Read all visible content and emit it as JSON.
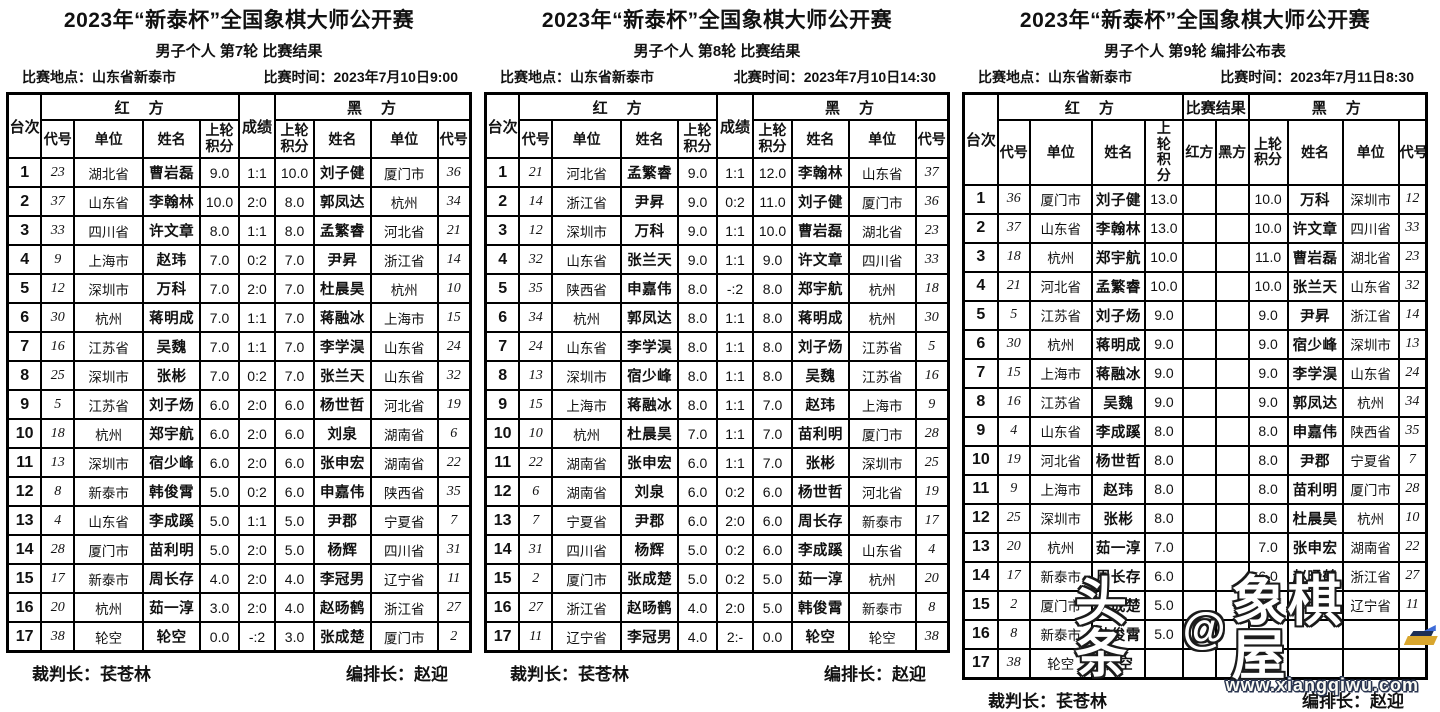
{
  "watermark": {
    "prefix": "头条",
    "at": "@",
    "logo": "象棋屋",
    "url": "www.xiangqiwu.com"
  },
  "tables": [
    {
      "title": "2023年“新泰杯”全国象棋大师公开赛",
      "subtitle": "男子个人 第7轮 比赛结果",
      "venue_label": "比赛地点：",
      "venue": "山东省新泰市",
      "time_label": "比赛时间：",
      "time": "2023年7月10日9:00",
      "footer_left": "裁判长：苌苍林",
      "footer_right": "编排长：赵迎",
      "result_cols": 1,
      "headers": {
        "board": "台次",
        "red": "红　方",
        "black": "黑　方",
        "result": "成绩",
        "code": "代号",
        "unit": "单位",
        "name": "姓名",
        "prev": "上轮积分"
      },
      "rows": [
        {
          "no": "1",
          "r_code": "23",
          "r_unit": "湖北省",
          "r_name": "曹岩磊",
          "r_prev": "9.0",
          "res": "1:1",
          "b_prev": "10.0",
          "b_name": "刘子健",
          "b_unit": "厦门市",
          "b_code": "36"
        },
        {
          "no": "2",
          "r_code": "37",
          "r_unit": "山东省",
          "r_name": "李翰林",
          "r_prev": "10.0",
          "res": "2:0",
          "b_prev": "8.0",
          "b_name": "郭凤达",
          "b_unit": "杭州",
          "b_code": "34"
        },
        {
          "no": "3",
          "r_code": "33",
          "r_unit": "四川省",
          "r_name": "许文章",
          "r_prev": "8.0",
          "res": "1:1",
          "b_prev": "8.0",
          "b_name": "孟繁睿",
          "b_unit": "河北省",
          "b_code": "21"
        },
        {
          "no": "4",
          "r_code": "9",
          "r_unit": "上海市",
          "r_name": "赵玮",
          "r_prev": "7.0",
          "res": "0:2",
          "b_prev": "7.0",
          "b_name": "尹昇",
          "b_unit": "浙江省",
          "b_code": "14"
        },
        {
          "no": "5",
          "r_code": "12",
          "r_unit": "深圳市",
          "r_name": "万科",
          "r_prev": "7.0",
          "res": "2:0",
          "b_prev": "7.0",
          "b_name": "杜晨昊",
          "b_unit": "杭州",
          "b_code": "10"
        },
        {
          "no": "6",
          "r_code": "30",
          "r_unit": "杭州",
          "r_name": "蒋明成",
          "r_prev": "7.0",
          "res": "1:1",
          "b_prev": "7.0",
          "b_name": "蒋融冰",
          "b_unit": "上海市",
          "b_code": "15"
        },
        {
          "no": "7",
          "r_code": "16",
          "r_unit": "江苏省",
          "r_name": "吴魏",
          "r_prev": "7.0",
          "res": "1:1",
          "b_prev": "7.0",
          "b_name": "李学淏",
          "b_unit": "山东省",
          "b_code": "24"
        },
        {
          "no": "8",
          "r_code": "25",
          "r_unit": "深圳市",
          "r_name": "张彬",
          "r_prev": "7.0",
          "res": "0:2",
          "b_prev": "7.0",
          "b_name": "张兰天",
          "b_unit": "山东省",
          "b_code": "32"
        },
        {
          "no": "9",
          "r_code": "5",
          "r_unit": "江苏省",
          "r_name": "刘子炀",
          "r_prev": "6.0",
          "res": "2:0",
          "b_prev": "6.0",
          "b_name": "杨世哲",
          "b_unit": "河北省",
          "b_code": "19"
        },
        {
          "no": "10",
          "r_code": "18",
          "r_unit": "杭州",
          "r_name": "郑宇航",
          "r_prev": "6.0",
          "res": "2:0",
          "b_prev": "6.0",
          "b_name": "刘泉",
          "b_unit": "湖南省",
          "b_code": "6"
        },
        {
          "no": "11",
          "r_code": "13",
          "r_unit": "深圳市",
          "r_name": "宿少峰",
          "r_prev": "6.0",
          "res": "2:0",
          "b_prev": "6.0",
          "b_name": "张申宏",
          "b_unit": "湖南省",
          "b_code": "22"
        },
        {
          "no": "12",
          "r_code": "8",
          "r_unit": "新泰市",
          "r_name": "韩俊霄",
          "r_prev": "5.0",
          "res": "0:2",
          "b_prev": "6.0",
          "b_name": "申嘉伟",
          "b_unit": "陕西省",
          "b_code": "35"
        },
        {
          "no": "13",
          "r_code": "4",
          "r_unit": "山东省",
          "r_name": "李成蹊",
          "r_prev": "5.0",
          "res": "1:1",
          "b_prev": "5.0",
          "b_name": "尹郡",
          "b_unit": "宁夏省",
          "b_code": "7"
        },
        {
          "no": "14",
          "r_code": "28",
          "r_unit": "厦门市",
          "r_name": "苗利明",
          "r_prev": "5.0",
          "res": "2:0",
          "b_prev": "5.0",
          "b_name": "杨辉",
          "b_unit": "四川省",
          "b_code": "31"
        },
        {
          "no": "15",
          "r_code": "17",
          "r_unit": "新泰市",
          "r_name": "周长存",
          "r_prev": "4.0",
          "res": "2:0",
          "b_prev": "4.0",
          "b_name": "李冠男",
          "b_unit": "辽宁省",
          "b_code": "11"
        },
        {
          "no": "16",
          "r_code": "20",
          "r_unit": "杭州",
          "r_name": "茹一淳",
          "r_prev": "3.0",
          "res": "2:0",
          "b_prev": "4.0",
          "b_name": "赵旸鹤",
          "b_unit": "浙江省",
          "b_code": "27"
        },
        {
          "no": "17",
          "r_code": "38",
          "r_unit": "轮空",
          "r_name": "轮空",
          "r_prev": "0.0",
          "res": "-:2",
          "b_prev": "3.0",
          "b_name": "张成楚",
          "b_unit": "厦门市",
          "b_code": "2"
        }
      ]
    },
    {
      "title": "2023年“新泰杯”全国象棋大师公开赛",
      "subtitle": "男子个人 第8轮 比赛结果",
      "venue_label": "比赛地点：",
      "venue": "山东省新泰市",
      "time_label": "北赛时间：",
      "time": "2023年7月10日14:30",
      "footer_left": "裁判长：苌苍林",
      "footer_right": "编排长：赵迎",
      "result_cols": 1,
      "headers": {
        "board": "台次",
        "red": "红　方",
        "black": "黑　方",
        "result": "成绩",
        "code": "代号",
        "unit": "单位",
        "name": "姓名",
        "prev": "上轮积分"
      },
      "rows": [
        {
          "no": "1",
          "r_code": "21",
          "r_unit": "河北省",
          "r_name": "孟繁睿",
          "r_prev": "9.0",
          "res": "1:1",
          "b_prev": "12.0",
          "b_name": "李翰林",
          "b_unit": "山东省",
          "b_code": "37"
        },
        {
          "no": "2",
          "r_code": "14",
          "r_unit": "浙江省",
          "r_name": "尹昇",
          "r_prev": "9.0",
          "res": "0:2",
          "b_prev": "11.0",
          "b_name": "刘子健",
          "b_unit": "厦门市",
          "b_code": "36"
        },
        {
          "no": "3",
          "r_code": "12",
          "r_unit": "深圳市",
          "r_name": "万科",
          "r_prev": "9.0",
          "res": "1:1",
          "b_prev": "10.0",
          "b_name": "曹岩磊",
          "b_unit": "湖北省",
          "b_code": "23"
        },
        {
          "no": "4",
          "r_code": "32",
          "r_unit": "山东省",
          "r_name": "张兰天",
          "r_prev": "9.0",
          "res": "1:1",
          "b_prev": "9.0",
          "b_name": "许文章",
          "b_unit": "四川省",
          "b_code": "33"
        },
        {
          "no": "5",
          "r_code": "35",
          "r_unit": "陕西省",
          "r_name": "申嘉伟",
          "r_prev": "8.0",
          "res": "-:2",
          "b_prev": "8.0",
          "b_name": "郑宇航",
          "b_unit": "杭州",
          "b_code": "18"
        },
        {
          "no": "6",
          "r_code": "34",
          "r_unit": "杭州",
          "r_name": "郭凤达",
          "r_prev": "8.0",
          "res": "1:1",
          "b_prev": "8.0",
          "b_name": "蒋明成",
          "b_unit": "杭州",
          "b_code": "30"
        },
        {
          "no": "7",
          "r_code": "24",
          "r_unit": "山东省",
          "r_name": "李学淏",
          "r_prev": "8.0",
          "res": "1:1",
          "b_prev": "8.0",
          "b_name": "刘子炀",
          "b_unit": "江苏省",
          "b_code": "5"
        },
        {
          "no": "8",
          "r_code": "13",
          "r_unit": "深圳市",
          "r_name": "宿少峰",
          "r_prev": "8.0",
          "res": "1:1",
          "b_prev": "8.0",
          "b_name": "吴魏",
          "b_unit": "江苏省",
          "b_code": "16"
        },
        {
          "no": "9",
          "r_code": "15",
          "r_unit": "上海市",
          "r_name": "蒋融冰",
          "r_prev": "8.0",
          "res": "1:1",
          "b_prev": "7.0",
          "b_name": "赵玮",
          "b_unit": "上海市",
          "b_code": "9"
        },
        {
          "no": "10",
          "r_code": "10",
          "r_unit": "杭州",
          "r_name": "杜晨昊",
          "r_prev": "7.0",
          "res": "1:1",
          "b_prev": "7.0",
          "b_name": "苗利明",
          "b_unit": "厦门市",
          "b_code": "28"
        },
        {
          "no": "11",
          "r_code": "22",
          "r_unit": "湖南省",
          "r_name": "张申宏",
          "r_prev": "6.0",
          "res": "1:1",
          "b_prev": "7.0",
          "b_name": "张彬",
          "b_unit": "深圳市",
          "b_code": "25"
        },
        {
          "no": "12",
          "r_code": "6",
          "r_unit": "湖南省",
          "r_name": "刘泉",
          "r_prev": "6.0",
          "res": "0:2",
          "b_prev": "6.0",
          "b_name": "杨世哲",
          "b_unit": "河北省",
          "b_code": "19"
        },
        {
          "no": "13",
          "r_code": "7",
          "r_unit": "宁夏省",
          "r_name": "尹郡",
          "r_prev": "6.0",
          "res": "2:0",
          "b_prev": "6.0",
          "b_name": "周长存",
          "b_unit": "新泰市",
          "b_code": "17"
        },
        {
          "no": "14",
          "r_code": "31",
          "r_unit": "四川省",
          "r_name": "杨辉",
          "r_prev": "5.0",
          "res": "0:2",
          "b_prev": "6.0",
          "b_name": "李成蹊",
          "b_unit": "山东省",
          "b_code": "4"
        },
        {
          "no": "15",
          "r_code": "2",
          "r_unit": "厦门市",
          "r_name": "张成楚",
          "r_prev": "5.0",
          "res": "0:2",
          "b_prev": "5.0",
          "b_name": "茹一淳",
          "b_unit": "杭州",
          "b_code": "20"
        },
        {
          "no": "16",
          "r_code": "27",
          "r_unit": "浙江省",
          "r_name": "赵旸鹤",
          "r_prev": "4.0",
          "res": "2:0",
          "b_prev": "5.0",
          "b_name": "韩俊霄",
          "b_unit": "新泰市",
          "b_code": "8"
        },
        {
          "no": "17",
          "r_code": "11",
          "r_unit": "辽宁省",
          "r_name": "李冠男",
          "r_prev": "4.0",
          "res": "2:-",
          "b_prev": "0.0",
          "b_name": "轮空",
          "b_unit": "轮空",
          "b_code": "38"
        }
      ]
    },
    {
      "title": "2023年“新泰杯”全国象棋大师公开赛",
      "subtitle": "男子个人 第9轮 编排公布表",
      "venue_label": "比赛地点：",
      "venue": "山东省新泰市",
      "time_label": "比赛时间：",
      "time": "2023年7月11日8:30",
      "footer_left": "裁判长：苌苍林",
      "footer_right": "编排长：赵迎",
      "result_cols": 2,
      "headers": {
        "board": "台次",
        "red": "红　方",
        "black": "黑　方",
        "result_group": "比赛结果",
        "result_red": "红方",
        "result_black": "黑方",
        "code": "代号",
        "unit": "单位",
        "name": "姓名",
        "prev": "上轮积分"
      },
      "rows": [
        {
          "no": "1",
          "r_code": "36",
          "r_unit": "厦门市",
          "r_name": "刘子健",
          "r_prev": "13.0",
          "res_r": "",
          "res_b": "",
          "b_prev": "10.0",
          "b_name": "万科",
          "b_unit": "深圳市",
          "b_code": "12"
        },
        {
          "no": "2",
          "r_code": "37",
          "r_unit": "山东省",
          "r_name": "李翰林",
          "r_prev": "13.0",
          "res_r": "",
          "res_b": "",
          "b_prev": "10.0",
          "b_name": "许文章",
          "b_unit": "四川省",
          "b_code": "33"
        },
        {
          "no": "3",
          "r_code": "18",
          "r_unit": "杭州",
          "r_name": "郑宇航",
          "r_prev": "10.0",
          "res_r": "",
          "res_b": "",
          "b_prev": "11.0",
          "b_name": "曹岩磊",
          "b_unit": "湖北省",
          "b_code": "23"
        },
        {
          "no": "4",
          "r_code": "21",
          "r_unit": "河北省",
          "r_name": "孟繁睿",
          "r_prev": "10.0",
          "res_r": "",
          "res_b": "",
          "b_prev": "10.0",
          "b_name": "张兰天",
          "b_unit": "山东省",
          "b_code": "32"
        },
        {
          "no": "5",
          "r_code": "5",
          "r_unit": "江苏省",
          "r_name": "刘子炀",
          "r_prev": "9.0",
          "res_r": "",
          "res_b": "",
          "b_prev": "9.0",
          "b_name": "尹昇",
          "b_unit": "浙江省",
          "b_code": "14"
        },
        {
          "no": "6",
          "r_code": "30",
          "r_unit": "杭州",
          "r_name": "蒋明成",
          "r_prev": "9.0",
          "res_r": "",
          "res_b": "",
          "b_prev": "9.0",
          "b_name": "宿少峰",
          "b_unit": "深圳市",
          "b_code": "13"
        },
        {
          "no": "7",
          "r_code": "15",
          "r_unit": "上海市",
          "r_name": "蒋融冰",
          "r_prev": "9.0",
          "res_r": "",
          "res_b": "",
          "b_prev": "9.0",
          "b_name": "李学淏",
          "b_unit": "山东省",
          "b_code": "24"
        },
        {
          "no": "8",
          "r_code": "16",
          "r_unit": "江苏省",
          "r_name": "吴魏",
          "r_prev": "9.0",
          "res_r": "",
          "res_b": "",
          "b_prev": "9.0",
          "b_name": "郭凤达",
          "b_unit": "杭州",
          "b_code": "34"
        },
        {
          "no": "9",
          "r_code": "4",
          "r_unit": "山东省",
          "r_name": "李成蹊",
          "r_prev": "8.0",
          "res_r": "",
          "res_b": "",
          "b_prev": "8.0",
          "b_name": "申嘉伟",
          "b_unit": "陕西省",
          "b_code": "35"
        },
        {
          "no": "10",
          "r_code": "19",
          "r_unit": "河北省",
          "r_name": "杨世哲",
          "r_prev": "8.0",
          "res_r": "",
          "res_b": "",
          "b_prev": "8.0",
          "b_name": "尹郡",
          "b_unit": "宁夏省",
          "b_code": "7"
        },
        {
          "no": "11",
          "r_code": "9",
          "r_unit": "上海市",
          "r_name": "赵玮",
          "r_prev": "8.0",
          "res_r": "",
          "res_b": "",
          "b_prev": "8.0",
          "b_name": "苗利明",
          "b_unit": "厦门市",
          "b_code": "28"
        },
        {
          "no": "12",
          "r_code": "25",
          "r_unit": "深圳市",
          "r_name": "张彬",
          "r_prev": "8.0",
          "res_r": "",
          "res_b": "",
          "b_prev": "8.0",
          "b_name": "杜晨昊",
          "b_unit": "杭州",
          "b_code": "10"
        },
        {
          "no": "13",
          "r_code": "20",
          "r_unit": "杭州",
          "r_name": "茹一淳",
          "r_prev": "7.0",
          "res_r": "",
          "res_b": "",
          "b_prev": "7.0",
          "b_name": "张申宏",
          "b_unit": "湖南省",
          "b_code": "22"
        },
        {
          "no": "14",
          "r_code": "17",
          "r_unit": "新泰市",
          "r_name": "周长存",
          "r_prev": "6.0",
          "res_r": "",
          "res_b": "",
          "b_prev": "6.0",
          "b_name": "赵旸鹤",
          "b_unit": "浙江省",
          "b_code": "27"
        },
        {
          "no": "15",
          "r_code": "2",
          "r_unit": "厦门市",
          "r_name": "张成楚",
          "r_prev": "5.0",
          "res_r": "",
          "res_b": "",
          "b_prev": "6.0",
          "b_name": "李冠男",
          "b_unit": "辽宁省",
          "b_code": "11"
        },
        {
          "no": "16",
          "r_code": "8",
          "r_unit": "新泰市",
          "r_name": "韩俊霄",
          "r_prev": "5.0",
          "res_r": "",
          "res_b": "",
          "b_prev": "6.0",
          "b_name": "",
          "b_unit": "",
          "b_code": ""
        },
        {
          "no": "17",
          "r_code": "38",
          "r_unit": "轮空",
          "r_name": "轮空",
          "r_prev": "",
          "res_r": "",
          "res_b": "",
          "b_prev": "",
          "b_name": "",
          "b_unit": "",
          "b_code": ""
        }
      ]
    }
  ]
}
